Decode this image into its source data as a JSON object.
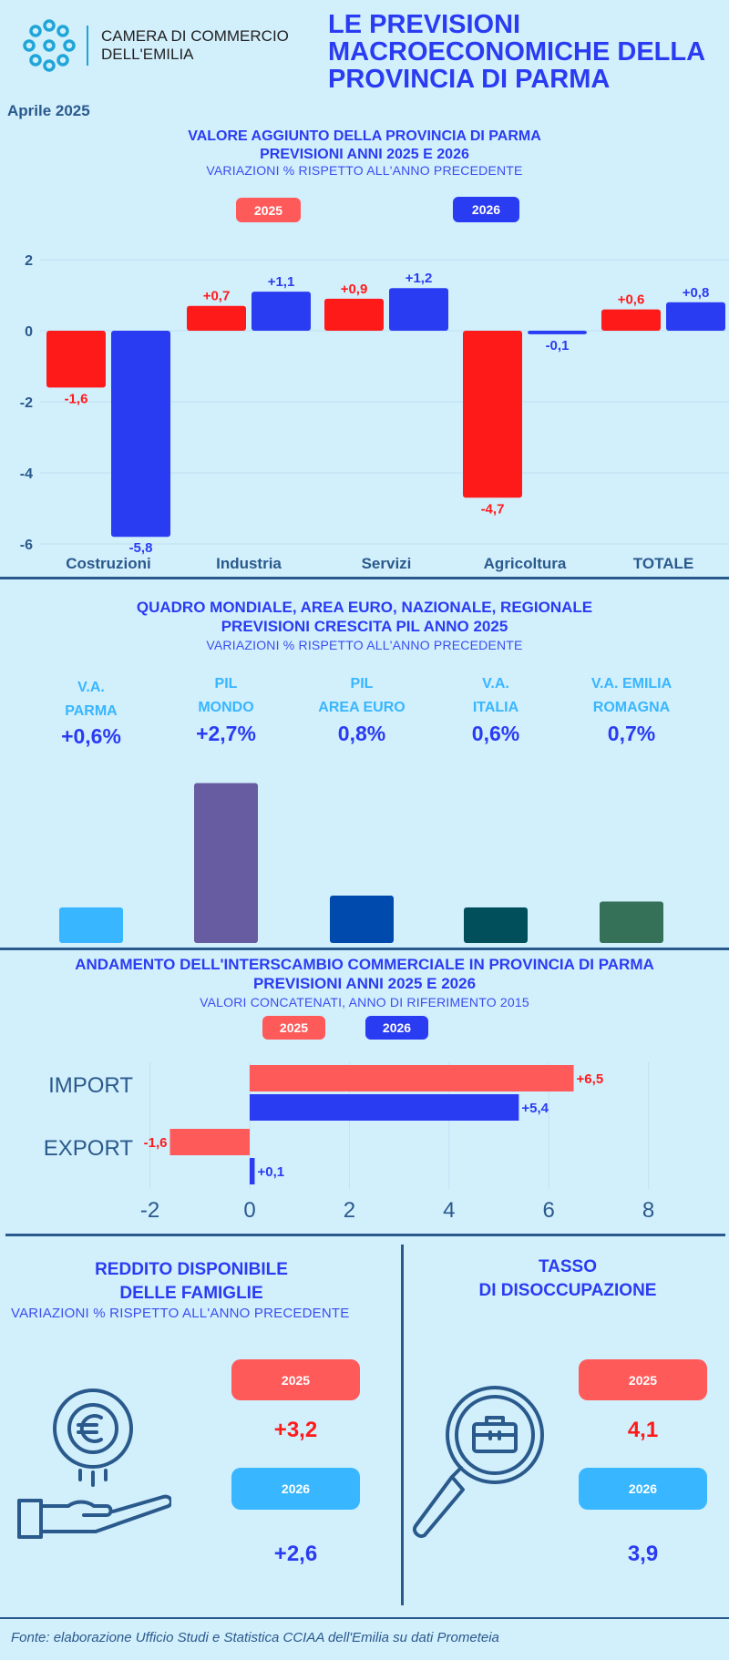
{
  "header": {
    "org_line1": "CAMERA DI COMMERCIO",
    "org_line2": "DELL'EMILIA",
    "title_lines": [
      "LE PREVISIONI",
      "MACROECONOMICHE DELLA",
      "PROVINCIA DI PARMA"
    ],
    "date": "Aprile 2025"
  },
  "colors": {
    "red": "#ff1a1a",
    "blue": "#2a3cf2",
    "pill_red": "#ff5a5a",
    "pill_blue": "#2a3cf2",
    "light_blue": "#38b6ff"
  },
  "chart_data": [
    {
      "type": "bar",
      "title": "VALORE AGGIUNTO DELLA PROVINCIA DI PARMA",
      "title2": "PREVISIONI ANNI 2025 E 2026",
      "subtitle": "VARIAZIONI % RISPETTO ALL'ANNO PRECEDENTE",
      "categories": [
        "Costruzioni",
        "Industria",
        "Servizi",
        "Agricoltura",
        "TOTALE"
      ],
      "series": [
        {
          "name": "2025",
          "values": [
            -1.6,
            0.7,
            0.9,
            -4.7,
            0.6
          ],
          "labels": [
            "-1,6",
            "+0,7",
            "+0,9",
            "-4,7",
            "+0,6"
          ]
        },
        {
          "name": "2026",
          "values": [
            -5.8,
            1.1,
            1.2,
            -0.1,
            0.8
          ],
          "labels": [
            "-5,8",
            "+1,1",
            "+1,2",
            "-0,1",
            "+0,8"
          ]
        }
      ],
      "yticks": [
        "2",
        "0",
        "-2",
        "-4",
        "-6"
      ],
      "ylim": [
        -6,
        2
      ],
      "grid": true
    },
    {
      "type": "bar",
      "title": "QUADRO MONDIALE, AREA EURO, NAZIONALE, REGIONALE",
      "title2": "PREVISIONI CRESCITA PIL ANNO 2025",
      "subtitle": "VARIAZIONI % RISPETTO ALL'ANNO PRECEDENTE",
      "categories": [
        [
          "V.A.",
          "PARMA"
        ],
        [
          "PIL",
          "MONDO"
        ],
        [
          "PIL",
          "AREA EURO"
        ],
        [
          "V.A.",
          "ITALIA"
        ],
        [
          "V.A. EMILIA",
          "ROMAGNA"
        ]
      ],
      "values": [
        0.6,
        2.7,
        0.8,
        0.6,
        0.7
      ],
      "labels": [
        "+0,6%",
        "+2,7%",
        "0,8%",
        "0,6%",
        "0,7%"
      ],
      "bar_colors": [
        "#38b6ff",
        "#675ba1",
        "#004aad",
        "#004f5a",
        "#357159"
      ]
    },
    {
      "type": "bar",
      "orientation": "horizontal",
      "title": "ANDAMENTO DELL'INTERSCAMBIO COMMERCIALE IN PROVINCIA DI PARMA",
      "title2": "PREVISIONI ANNI  2025 E 2026",
      "subtitle": "VALORI CONCATENATI, ANNO DI RIFERIMENTO 2015",
      "categories": [
        "IMPORT",
        "EXPORT"
      ],
      "series": [
        {
          "name": "2025",
          "values": [
            6.5,
            -1.6
          ],
          "labels": [
            "+6,5",
            "-1,6"
          ]
        },
        {
          "name": "2026",
          "values": [
            5.4,
            0.1
          ],
          "labels": [
            "+5,4",
            "+0,1"
          ]
        }
      ],
      "xticks": [
        "-2",
        "0",
        "2",
        "4",
        "6",
        "8"
      ],
      "xlim": [
        -2,
        8
      ]
    }
  ],
  "reddito": {
    "title1": "REDDITO DISPONIBILE",
    "title2": "DELLE FAMIGLIE",
    "subtitle": "VARIAZIONI % RISPETTO ALL'ANNO PRECEDENTE",
    "y1": "2025",
    "v1": "+3,2",
    "y2": "2026",
    "v2": "+2,6"
  },
  "disoccupazione": {
    "title1": "TASSO",
    "title2": "DI DISOCCUPAZIONE",
    "y1": "2025",
    "v1": "4,1",
    "y2": "2026",
    "v2": "3,9"
  },
  "footer": "Fonte: elaborazione Ufficio Studi e Statistica CCIAA dell'Emilia su dati Prometeia"
}
